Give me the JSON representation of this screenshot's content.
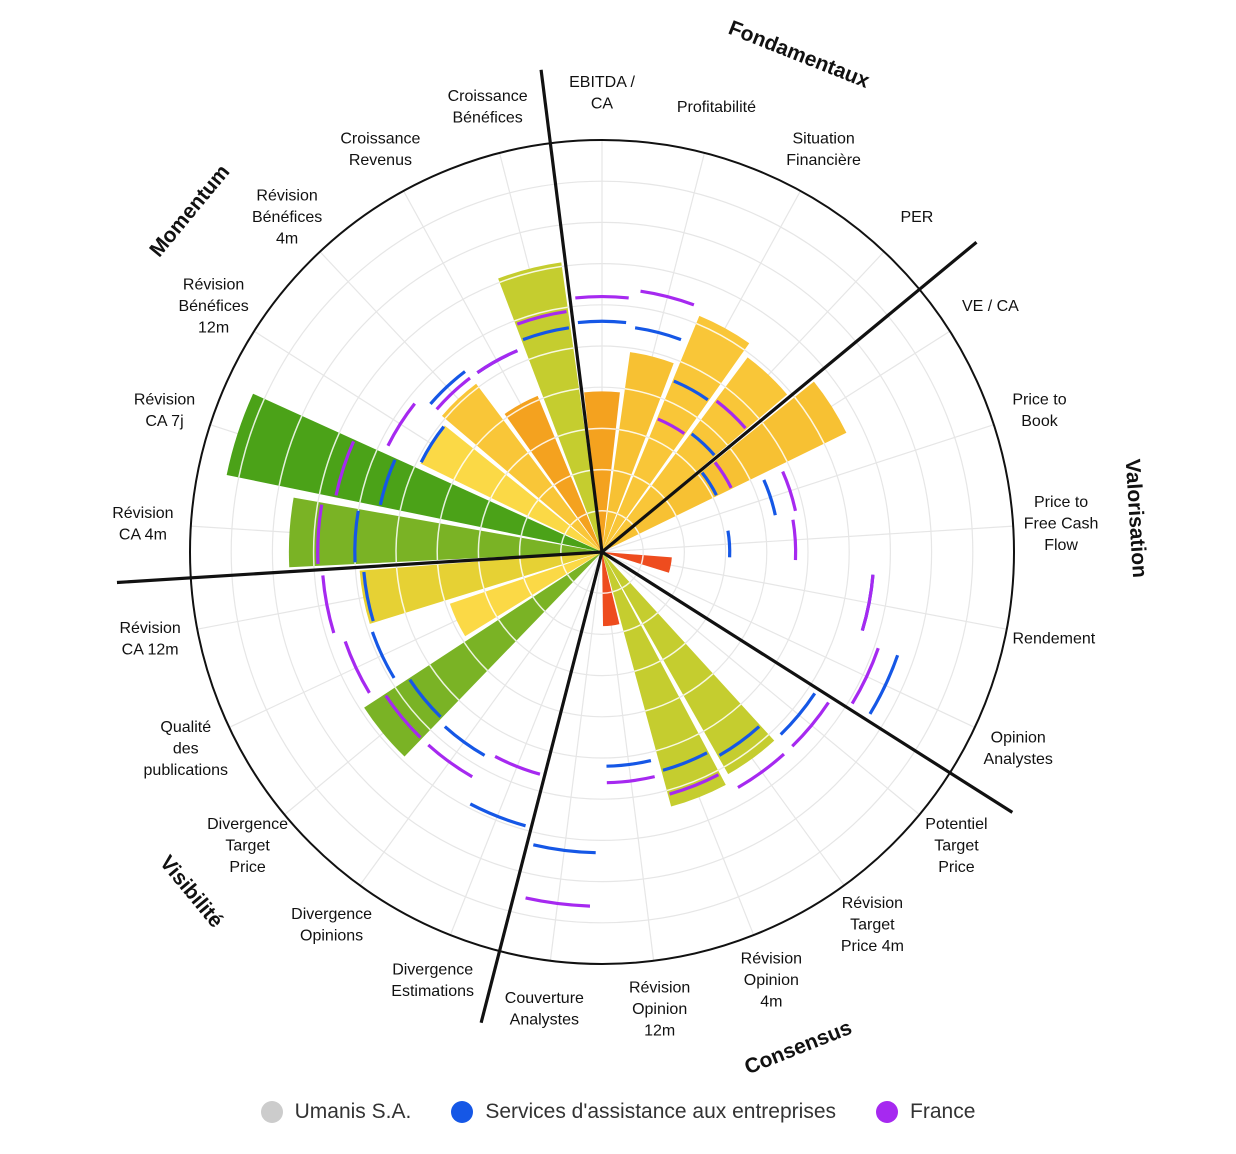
{
  "chart_data": {
    "type": "polar-bar",
    "max_value": 10,
    "rings": 10,
    "groups": [
      {
        "label": "Fondamentaux",
        "count": 4
      },
      {
        "label": "Valorisation",
        "count": 5
      },
      {
        "label": "Consensus",
        "count": 5
      },
      {
        "label": "Visibilité",
        "count": 5
      },
      {
        "label": "Momentum",
        "count": 6
      }
    ],
    "categories": [
      {
        "label": "EBITDA / CA",
        "lines": [
          "EBITDA /",
          "CA"
        ]
      },
      {
        "label": "Profitabilité",
        "lines": [
          "Profitabilité"
        ]
      },
      {
        "label": "Situation Financière",
        "lines": [
          "Situation",
          "Financière"
        ]
      },
      {
        "label": "PER",
        "lines": [
          "PER"
        ]
      },
      {
        "label": "VE / CA",
        "lines": [
          "VE / CA"
        ]
      },
      {
        "label": "Price to Book",
        "lines": [
          "Price to",
          "Book"
        ]
      },
      {
        "label": "Price to Free Cash Flow",
        "lines": [
          "Price to",
          "Free Cash",
          "Flow"
        ]
      },
      {
        "label": "Rendement",
        "lines": [
          "Rendement"
        ]
      },
      {
        "label": "Opinion Analystes",
        "lines": [
          "Opinion",
          "Analystes"
        ]
      },
      {
        "label": "Potentiel Target Price",
        "lines": [
          "Potentiel",
          "Target",
          "Price"
        ]
      },
      {
        "label": "Révision Target Price 4m",
        "lines": [
          "Révision",
          "Target",
          "Price 4m"
        ]
      },
      {
        "label": "Révision Opinion 4m",
        "lines": [
          "Révision",
          "Opinion",
          "4m"
        ]
      },
      {
        "label": "Révision Opinion 12m",
        "lines": [
          "Révision",
          "Opinion",
          "12m"
        ]
      },
      {
        "label": "Couverture Analystes",
        "lines": [
          "Couverture",
          "Analystes"
        ]
      },
      {
        "label": "Divergence Estimations",
        "lines": [
          "Divergence",
          "Estimations"
        ]
      },
      {
        "label": "Divergence Opinions",
        "lines": [
          "Divergence",
          "Opinions"
        ]
      },
      {
        "label": "Divergence Target Price",
        "lines": [
          "Divergence",
          "Target",
          "Price"
        ]
      },
      {
        "label": "Qualité des publications",
        "lines": [
          "Qualité",
          "des",
          "publications"
        ]
      },
      {
        "label": "Révision CA 12m",
        "lines": [
          "Révision",
          "CA 12m"
        ]
      },
      {
        "label": "Révision CA 4m",
        "lines": [
          "Révision",
          "CA 4m"
        ]
      },
      {
        "label": "Révision CA 7j",
        "lines": [
          "Révision",
          "CA 7j"
        ]
      },
      {
        "label": "Révision Bénéfices 12m",
        "lines": [
          "Révision",
          "Bénéfices",
          "12m"
        ]
      },
      {
        "label": "Révision Bénéfices 4m",
        "lines": [
          "Révision",
          "Bénéfices",
          "4m"
        ]
      },
      {
        "label": "Croissance Revenus",
        "lines": [
          "Croissance",
          "Revenus"
        ]
      },
      {
        "label": "Croissance Bénéfices",
        "lines": [
          "Croissance",
          "Bénéfices"
        ]
      }
    ],
    "series": [
      {
        "name": "Umanis S.A.",
        "legend_color": "#cccccc",
        "values": [
          3.9,
          4.9,
          6.2,
          5.9,
          6.6,
          0.0,
          0.0,
          1.7,
          0.0,
          0.0,
          6.2,
          6.4,
          1.8,
          0.0,
          0.0,
          0.0,
          6.9,
          3.9,
          5.9,
          7.6,
          9.3,
          4.9,
          5.1,
          4.1,
          7.1
        ],
        "colors": [
          "#f4a21f",
          "#f7c133",
          "#f9c638",
          "#f9c638",
          "#f7c133",
          "#fbd946",
          "#c5cd2f",
          "#ee4c1e",
          "#d9d231",
          "#fbd946",
          "#c5cd2f",
          "#c5cd2f",
          "#ee4c1e",
          "#fbd946",
          "#fbd946",
          "#fbd946",
          "#7ab325",
          "#fbd946",
          "#e6d134",
          "#7ab325",
          "#4ba218",
          "#fbd946",
          "#f9c638",
          "#f4a21f",
          "#c5cd2f"
        ]
      },
      {
        "name": "Services d'assistance aux entreprises",
        "legend_color": "#1557e6",
        "values": [
          5.6,
          5.5,
          4.5,
          3.6,
          3.1,
          4.3,
          3.1,
          6.6,
          7.6,
          6.2,
          5.7,
          5.5,
          5.2,
          7.3,
          6.9,
          5.7,
          5.6,
          5.9,
          5.8,
          6.0,
          5.5,
          4.9,
          5.5,
          5.3,
          5.5
        ],
        "colors": [
          "#1557e6",
          "#1557e6",
          "#1557e6",
          "#1557e6",
          "#1557e6",
          "#1557e6",
          "#1557e6",
          "#1557e6",
          "#1557e6",
          "#1557e6",
          "#1557e6",
          "#1557e6",
          "#1557e6",
          "#1557e6",
          "#1557e6",
          "#1557e6",
          "#1557e6",
          "#1557e6",
          "#1557e6",
          "#1557e6",
          "#1557e6",
          "#1557e6",
          "#1557e6",
          "#1557e6",
          "#1557e6"
        ]
      },
      {
        "name": "France",
        "legend_color": "#a629f0",
        "values": [
          6.2,
          6.4,
          3.5,
          4.6,
          3.5,
          4.8,
          4.7,
          6.6,
          7.1,
          6.6,
          6.6,
          6.1,
          5.6,
          8.6,
          5.6,
          6.3,
          6.3,
          6.6,
          6.8,
          6.9,
          6.6,
          5.8,
          5.3,
          5.3,
          5.9
        ],
        "colors": [
          "#a629f0",
          "#a629f0",
          "#a629f0",
          "#a629f0",
          "#a629f0",
          "#a629f0",
          "#a629f0",
          "#a629f0",
          "#a629f0",
          "#a629f0",
          "#a629f0",
          "#a629f0",
          "#a629f0",
          "#a629f0",
          "#a629f0",
          "#a629f0",
          "#a629f0",
          "#a629f0",
          "#a629f0",
          "#a629f0",
          "#a629f0",
          "#a629f0",
          "#a629f0",
          "#a629f0",
          "#a629f0"
        ]
      }
    ]
  }
}
